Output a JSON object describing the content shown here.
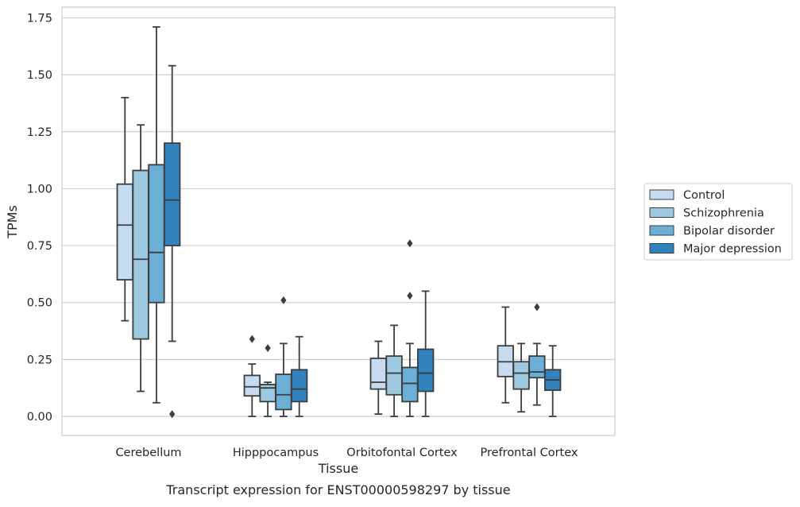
{
  "caption": "Transcript expression for ENST00000598297 by tissue",
  "chart_data": {
    "type": "boxplot",
    "xlabel": "Tissue",
    "ylabel": "TPMs",
    "ylim": [
      -0.08,
      1.8
    ],
    "yticks": [
      0.0,
      0.25,
      0.5,
      0.75,
      1.0,
      1.25,
      1.5,
      1.75
    ],
    "ytick_labels": [
      "0.00",
      "0.25",
      "0.50",
      "0.75",
      "1.00",
      "1.25",
      "1.50",
      "1.75"
    ],
    "grid": "horizontal",
    "legend_position": "right",
    "categories": [
      "Cerebellum",
      "Hipppocampus",
      "Orbitofontal Cortex",
      "Prefrontal Cortex"
    ],
    "series": [
      {
        "name": "Control",
        "color": "#c6dbef",
        "boxes": [
          {
            "whislo": 0.42,
            "q1": 0.6,
            "med": 0.84,
            "q3": 1.02,
            "whishi": 1.4,
            "fliers": []
          },
          {
            "whislo": 0.0,
            "q1": 0.09,
            "med": 0.13,
            "q3": 0.18,
            "whishi": 0.23,
            "fliers": [
              0.34
            ]
          },
          {
            "whislo": 0.01,
            "q1": 0.12,
            "med": 0.15,
            "q3": 0.255,
            "whishi": 0.33,
            "fliers": []
          },
          {
            "whislo": 0.06,
            "q1": 0.175,
            "med": 0.24,
            "q3": 0.31,
            "whishi": 0.48,
            "fliers": []
          }
        ]
      },
      {
        "name": "Schizophrenia",
        "color": "#9ecae1",
        "boxes": [
          {
            "whislo": 0.11,
            "q1": 0.34,
            "med": 0.69,
            "q3": 1.08,
            "whishi": 1.28,
            "fliers": []
          },
          {
            "whislo": 0.0,
            "q1": 0.065,
            "med": 0.125,
            "q3": 0.14,
            "whishi": 0.15,
            "fliers": [
              0.3
            ]
          },
          {
            "whislo": 0.0,
            "q1": 0.095,
            "med": 0.19,
            "q3": 0.265,
            "whishi": 0.4,
            "fliers": []
          },
          {
            "whislo": 0.02,
            "q1": 0.12,
            "med": 0.19,
            "q3": 0.24,
            "whishi": 0.32,
            "fliers": []
          }
        ]
      },
      {
        "name": "Bipolar disorder",
        "color": "#6baed6",
        "boxes": [
          {
            "whislo": 0.06,
            "q1": 0.5,
            "med": 0.72,
            "q3": 1.105,
            "whishi": 1.71,
            "fliers": []
          },
          {
            "whislo": 0.0,
            "q1": 0.03,
            "med": 0.095,
            "q3": 0.185,
            "whishi": 0.32,
            "fliers": [
              0.51
            ]
          },
          {
            "whislo": 0.0,
            "q1": 0.065,
            "med": 0.145,
            "q3": 0.215,
            "whishi": 0.32,
            "fliers": [
              0.53,
              0.76
            ]
          },
          {
            "whislo": 0.05,
            "q1": 0.17,
            "med": 0.195,
            "q3": 0.265,
            "whishi": 0.32,
            "fliers": [
              0.48
            ]
          }
        ]
      },
      {
        "name": "Major depression",
        "color": "#3182bd",
        "boxes": [
          {
            "whislo": 0.33,
            "q1": 0.75,
            "med": 0.95,
            "q3": 1.2,
            "whishi": 1.54,
            "fliers": [
              0.01
            ]
          },
          {
            "whislo": 0.0,
            "q1": 0.065,
            "med": 0.12,
            "q3": 0.205,
            "whishi": 0.35,
            "fliers": []
          },
          {
            "whislo": 0.0,
            "q1": 0.11,
            "med": 0.19,
            "q3": 0.295,
            "whishi": 0.55,
            "fliers": []
          },
          {
            "whislo": 0.0,
            "q1": 0.115,
            "med": 0.16,
            "q3": 0.205,
            "whishi": 0.31,
            "fliers": []
          }
        ]
      }
    ]
  }
}
